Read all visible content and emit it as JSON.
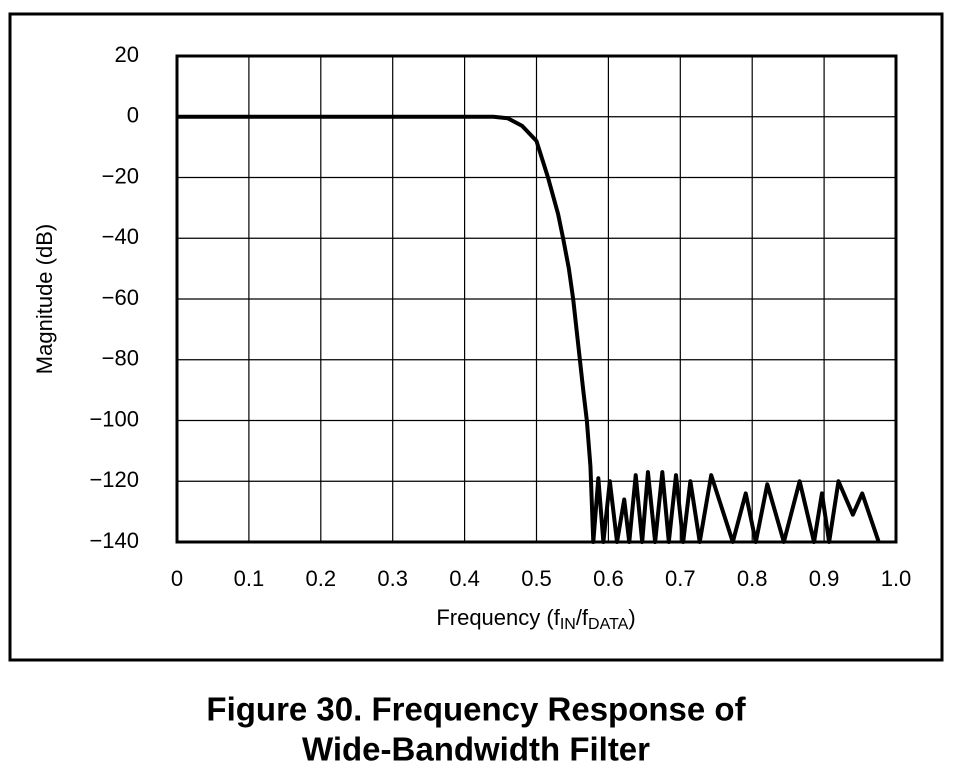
{
  "chart_data": {
    "type": "line",
    "xlabel_parts": [
      "Frequency (f",
      "IN",
      "/f",
      "DATA",
      ")"
    ],
    "ylabel": "Magnitude (dB)",
    "caption": [
      "Figure 30.  Frequency Response of",
      "Wide-Bandwidth Filter"
    ],
    "xlim": [
      0,
      1.0
    ],
    "ylim": [
      -140,
      20
    ],
    "xticks": [
      0,
      0.1,
      0.2,
      0.3,
      0.4,
      0.5,
      0.6,
      0.7,
      0.8,
      0.9,
      {
        "value": 1.0,
        "label": "1.0"
      }
    ],
    "yticks": [
      20,
      0,
      {
        "value": -20,
        "label": "−20"
      },
      {
        "value": -40,
        "label": "−40"
      },
      {
        "value": -60,
        "label": "−60"
      },
      {
        "value": -80,
        "label": "−80"
      },
      {
        "value": -100,
        "label": "−100"
      },
      {
        "value": -120,
        "label": "−120"
      },
      {
        "value": -140,
        "label": "−140"
      }
    ],
    "grid": true,
    "series": [
      {
        "color": "#000000",
        "x": [
          0,
          0.1,
          0.2,
          0.3,
          0.44,
          0.46,
          0.48,
          0.5,
          0.516,
          0.53,
          0.537,
          0.545,
          0.551,
          0.558,
          0.565,
          0.57,
          0.575,
          0.579,
          0.586,
          0.593,
          0.602,
          0.612,
          0.622,
          0.629,
          0.638,
          0.647,
          0.655,
          0.665,
          0.675,
          0.684,
          0.694,
          0.704,
          0.714,
          0.727,
          0.743,
          0.773,
          0.791,
          0.805,
          0.821,
          0.844,
          0.866,
          0.886,
          0.897,
          0.907,
          0.92,
          0.94,
          0.953,
          0.976
        ],
        "values": [
          0,
          0,
          0,
          0,
          0,
          -0.5,
          -3,
          -8,
          -20,
          -32,
          -40,
          -50,
          -60,
          -75,
          -90,
          -100,
          -115,
          -140,
          -119,
          -140,
          -120,
          -140,
          -126,
          -140,
          -118,
          -140,
          -117,
          -140,
          -117,
          -140,
          -118,
          -140,
          -120,
          -140,
          -118,
          -140,
          -124,
          -140,
          -121,
          -140,
          -120,
          -140,
          -124,
          -140,
          -120,
          -131,
          -124,
          -140
        ]
      }
    ]
  }
}
